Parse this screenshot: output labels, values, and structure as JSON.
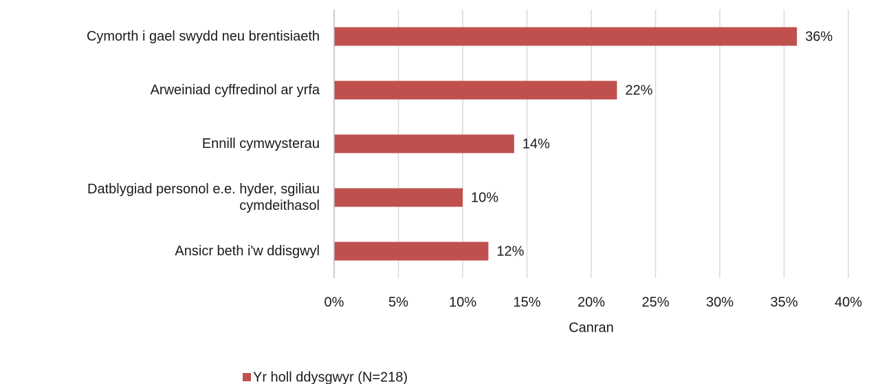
{
  "chart_data": {
    "type": "bar",
    "orientation": "horizontal",
    "categories": [
      "Cymorth i gael swydd neu brentisiaeth",
      "Arweiniad cyffredinol ar yrfa",
      "Ennill cymwysterau",
      "Datblygiad personol e.e. hyder, sgiliau cymdeithasol",
      "Ansicr beth i'w ddisgwyl"
    ],
    "series": [
      {
        "name": "Yr holl ddysgwyr (N=218)",
        "color": "#c0504d",
        "values": [
          36,
          22,
          14,
          10,
          12
        ],
        "value_labels": [
          "36%",
          "22%",
          "14%",
          "10%",
          "12%"
        ]
      }
    ],
    "xlabel": "Canran",
    "xlim": [
      0,
      40
    ],
    "xticks": [
      {
        "value": 0,
        "label": "0%"
      },
      {
        "value": 5,
        "label": "5%"
      },
      {
        "value": 10,
        "label": "10%"
      },
      {
        "value": 15,
        "label": "15%"
      },
      {
        "value": 20,
        "label": "20%"
      },
      {
        "value": 25,
        "label": "25%"
      },
      {
        "value": 30,
        "label": "30%"
      },
      {
        "value": 35,
        "label": "35%"
      },
      {
        "value": 40,
        "label": "40%"
      }
    ],
    "grid": true,
    "legend": "bottom"
  }
}
